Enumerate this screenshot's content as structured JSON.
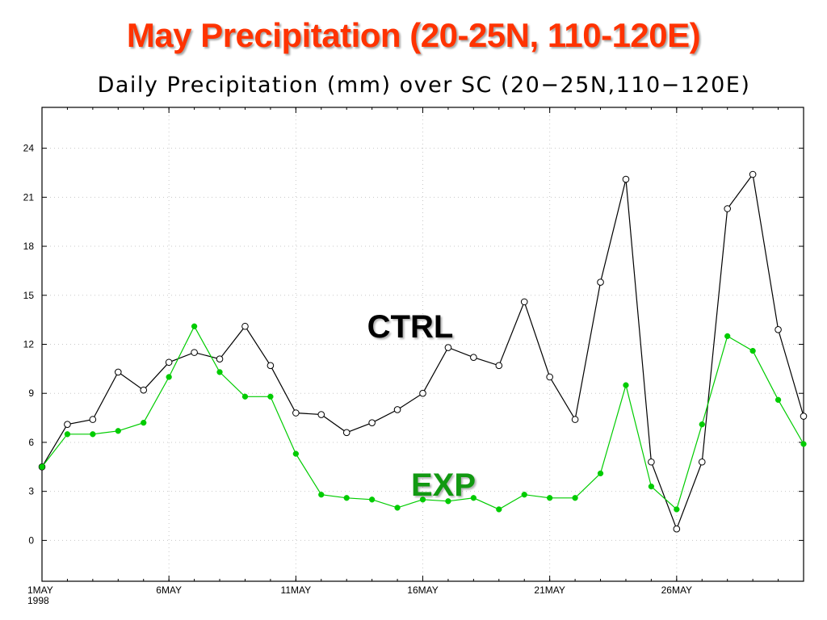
{
  "slide": {
    "title": "May Precipitation (20-25N, 110-120E)"
  },
  "chart_data": {
    "type": "line",
    "title": "Daily Precipitation (mm) over SC (20−25N,110−120E)",
    "xlabel": "",
    "ylabel": "",
    "x_range": [
      "1998-05-01",
      "1998-05-31"
    ],
    "ylim": [
      -2.5,
      26.5
    ],
    "yticks": [
      0,
      3,
      6,
      9,
      12,
      15,
      18,
      21,
      24
    ],
    "xticks": [
      {
        "date": "1998-05-01",
        "label": "1MAY",
        "sublabel": "1998"
      },
      {
        "date": "1998-05-06",
        "label": "6MAY"
      },
      {
        "date": "1998-05-11",
        "label": "11MAY"
      },
      {
        "date": "1998-05-16",
        "label": "16MAY"
      },
      {
        "date": "1998-05-21",
        "label": "21MAY"
      },
      {
        "date": "1998-05-26",
        "label": "26MAY"
      }
    ],
    "grid": true,
    "x": [
      "1998-05-01",
      "1998-05-02",
      "1998-05-03",
      "1998-05-04",
      "1998-05-05",
      "1998-05-06",
      "1998-05-07",
      "1998-05-08",
      "1998-05-09",
      "1998-05-10",
      "1998-05-11",
      "1998-05-12",
      "1998-05-13",
      "1998-05-14",
      "1998-05-15",
      "1998-05-16",
      "1998-05-17",
      "1998-05-18",
      "1998-05-19",
      "1998-05-20",
      "1998-05-21",
      "1998-05-22",
      "1998-05-23",
      "1998-05-24",
      "1998-05-25",
      "1998-05-26",
      "1998-05-27",
      "1998-05-28",
      "1998-05-29",
      "1998-05-30",
      "1998-05-31"
    ],
    "series": [
      {
        "name": "CTRL",
        "color": "#000000",
        "marker": "open-circle",
        "values": [
          4.5,
          7.1,
          7.4,
          10.3,
          9.2,
          10.9,
          11.5,
          11.1,
          13.1,
          10.7,
          7.8,
          7.7,
          6.6,
          7.2,
          8.0,
          9.0,
          11.8,
          11.2,
          10.7,
          14.6,
          10.0,
          7.4,
          15.8,
          22.1,
          4.8,
          0.7,
          4.8,
          20.3,
          22.4,
          12.9,
          7.6
        ]
      },
      {
        "name": "EXP",
        "color": "#00cc00",
        "label_color": "#119911",
        "marker": "filled-circle",
        "values": [
          4.5,
          6.5,
          6.5,
          6.7,
          7.2,
          10.0,
          13.1,
          10.3,
          8.8,
          8.8,
          5.3,
          2.8,
          2.6,
          2.5,
          2.0,
          2.5,
          2.4,
          2.6,
          1.9,
          2.8,
          2.6,
          2.6,
          4.1,
          9.5,
          3.3,
          1.9,
          7.1,
          12.5,
          11.6,
          8.6,
          5.9
        ]
      }
    ]
  }
}
